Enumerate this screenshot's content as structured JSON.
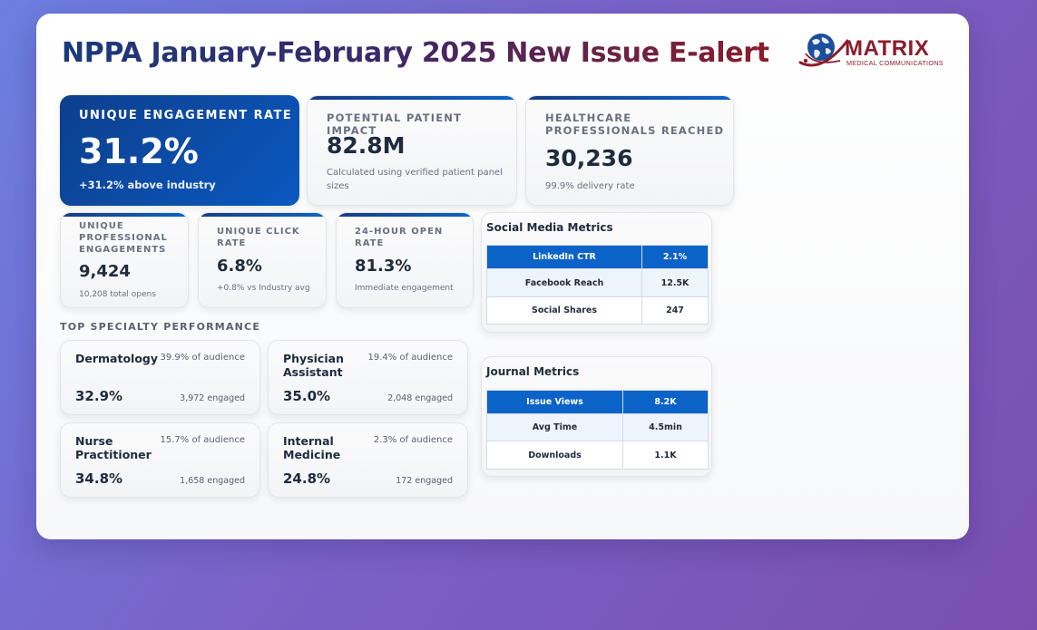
{
  "title": "NPPA January-February 2025 New Issue E-alert",
  "logo": {
    "name": "MATRIX",
    "tagline": "MEDICAL COMMUNICATIONS"
  },
  "top_cards": [
    {
      "label": "UNIQUE ENGAGEMENT RATE",
      "value": "31.2%",
      "sub": "+31.2% above industry"
    },
    {
      "label": "POTENTIAL PATIENT IMPACT",
      "value": "82.8M",
      "sub": "Calculated using verified patient panel sizes"
    },
    {
      "label": "HEALTHCARE PROFESSIONALS REACHED",
      "value": "30,236",
      "sub": "99.9% delivery rate"
    }
  ],
  "mid_cards": [
    {
      "label": "UNIQUE PROFESSIONAL ENGAGEMENTS",
      "value": "9,424",
      "sub": "10,208 total opens"
    },
    {
      "label": "UNIQUE CLICK RATE",
      "value": "6.8%",
      "sub": "+0.8% vs Industry avg"
    },
    {
      "label": "24-HOUR OPEN RATE",
      "value": "81.3%",
      "sub": "Immediate engagement"
    }
  ],
  "specialty_section_title": "TOP SPECIALTY PERFORMANCE",
  "specialties": [
    {
      "name": "Dermatology",
      "audience": "39.9% of audience",
      "pct": "32.9%",
      "engaged": "3,972 engaged"
    },
    {
      "name": "Physician Assistant",
      "audience": "19.4% of audience",
      "pct": "35.0%",
      "engaged": "2,048 engaged"
    },
    {
      "name": "Nurse Practitioner",
      "audience": "15.7% of audience",
      "pct": "34.8%",
      "engaged": "1,658 engaged"
    },
    {
      "name": "Internal Medicine",
      "audience": "2.3% of audience",
      "pct": "24.8%",
      "engaged": "172 engaged"
    }
  ],
  "social": {
    "title": "Social Media Metrics",
    "rows": [
      {
        "metric": "LinkedIn CTR",
        "value": "2.1%"
      },
      {
        "metric": "Facebook Reach",
        "value": "12.5K"
      },
      {
        "metric": "Social Shares",
        "value": "247"
      }
    ]
  },
  "journal": {
    "title": "Journal Metrics",
    "rows": [
      {
        "metric": "Issue Views",
        "value": "8.2K"
      },
      {
        "metric": "Avg Time",
        "value": "4.5min"
      },
      {
        "metric": "Downloads",
        "value": "1.1K"
      }
    ]
  },
  "colors": {
    "accent": "#0b63c8",
    "brand": "#8b1d2c",
    "title_start": "#1a3a7a",
    "title_end": "#8a1c2c"
  }
}
